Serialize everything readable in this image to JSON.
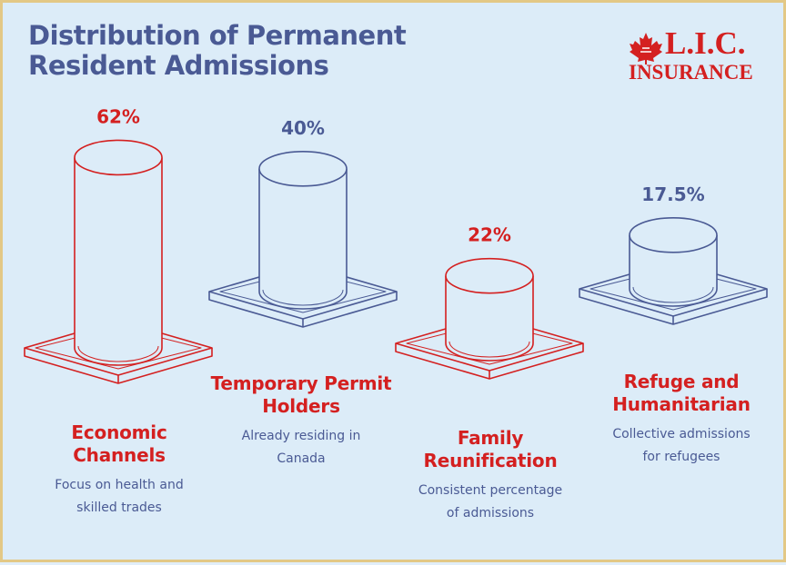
{
  "title_lines": [
    "Distribution of Permanent",
    "Resident Admissions"
  ],
  "logo": {
    "line1": "L.I.C.",
    "line2": "INSURANCE",
    "icon": "maple-leaf-icon"
  },
  "colors": {
    "title": "#4a5a94",
    "red": "#d42020",
    "blue": "#4a5a94",
    "background": "#dcecf8",
    "border": "#e3c886"
  },
  "chart_data": {
    "type": "bar",
    "categories": [
      "Economic Channels",
      "Temporary Permit Holders",
      "Family Reunification",
      "Refuge and Humanitarian"
    ],
    "values": [
      62,
      40,
      22,
      17.5
    ],
    "value_labels": [
      "62%",
      "40%",
      "22%",
      "17.5%"
    ],
    "title": "Distribution of Permanent Resident Admissions",
    "xlabel": "",
    "ylabel": "",
    "grid": false
  },
  "items": [
    {
      "name_lines": [
        "Economic",
        "Channels"
      ],
      "note_lines": [
        "Focus on health and",
        "skilled trades"
      ],
      "color": "#d42020"
    },
    {
      "name_lines": [
        "Temporary Permit",
        "Holders"
      ],
      "note_lines": [
        "Already residing in",
        "Canada"
      ],
      "color": "#4a5a94"
    },
    {
      "name_lines": [
        "Family",
        "Reunification"
      ],
      "note_lines": [
        "Consistent percentage",
        "of admissions"
      ],
      "color": "#d42020"
    },
    {
      "name_lines": [
        "Refuge and",
        "Humanitarian"
      ],
      "note_lines": [
        "Collective admissions",
        "for refugees"
      ],
      "color": "#4a5a94"
    }
  ]
}
